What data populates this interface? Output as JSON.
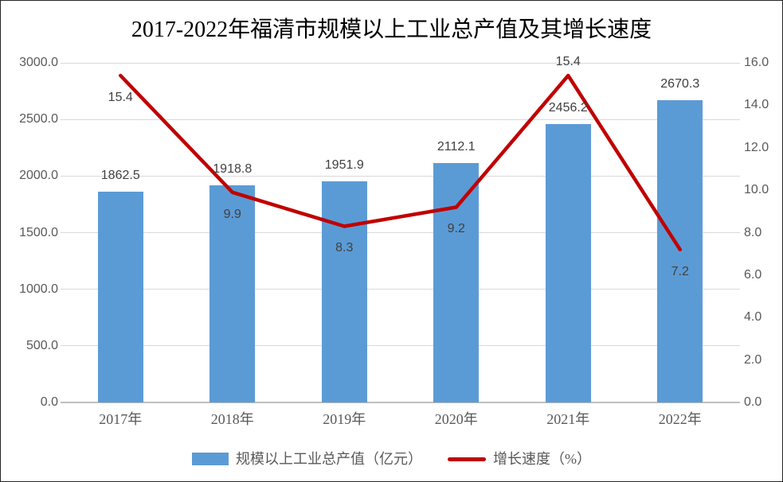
{
  "frame": {
    "background": "#ffffff",
    "border_color": "#262626"
  },
  "chart_data": {
    "type": "bar",
    "subtype": "combo-bar-line",
    "title": "2017-2022年福清市规模以上工业总产值及其增长速度",
    "categories": [
      "2017年",
      "2018年",
      "2019年",
      "2020年",
      "2021年",
      "2022年"
    ],
    "series": [
      {
        "name": "规模以上工业总产值（亿元）",
        "type": "bar",
        "axis": "left",
        "color": "#5B9BD5",
        "values": [
          1862.5,
          1918.8,
          1951.9,
          2112.1,
          2456.2,
          2670.3
        ]
      },
      {
        "name": "增长速度（%）",
        "type": "line",
        "axis": "right",
        "color": "#C00000",
        "values": [
          15.4,
          9.9,
          8.3,
          9.2,
          15.4,
          7.2
        ],
        "label_positions": [
          "below",
          "below",
          "below",
          "below",
          "above",
          "below"
        ]
      }
    ],
    "left_axis": {
      "min": 0,
      "max": 3000,
      "step": 500,
      "decimals": 1
    },
    "right_axis": {
      "min": 0,
      "max": 16,
      "step": 2,
      "decimals": 1
    },
    "grid": "horizontal",
    "legend_position": "bottom",
    "colors": {
      "gridline": "#D9D9D9",
      "axis_line": "#BFBFBF",
      "tick_text": "#595959",
      "data_label_text": "#404040",
      "title_text": "#000000"
    }
  }
}
